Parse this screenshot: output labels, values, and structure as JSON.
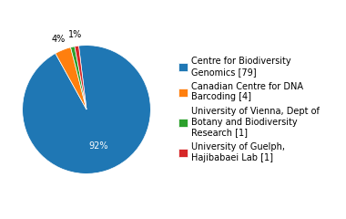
{
  "chart_data": {
    "type": "pie",
    "categories": [
      "Centre for Biodiversity\nGenomics [79]",
      "Canadian Centre for DNA\nBarcoding [4]",
      "University of Vienna, Dept of\nBotany and Biodiversity\nResearch [1]",
      "University of Guelph,\nHajibabaei Lab [1]"
    ],
    "values": [
      92,
      4,
      1,
      1
    ],
    "value_labels": [
      "92%",
      "4%",
      null,
      "1%"
    ],
    "data_labels": true,
    "legend": "center left"
  }
}
